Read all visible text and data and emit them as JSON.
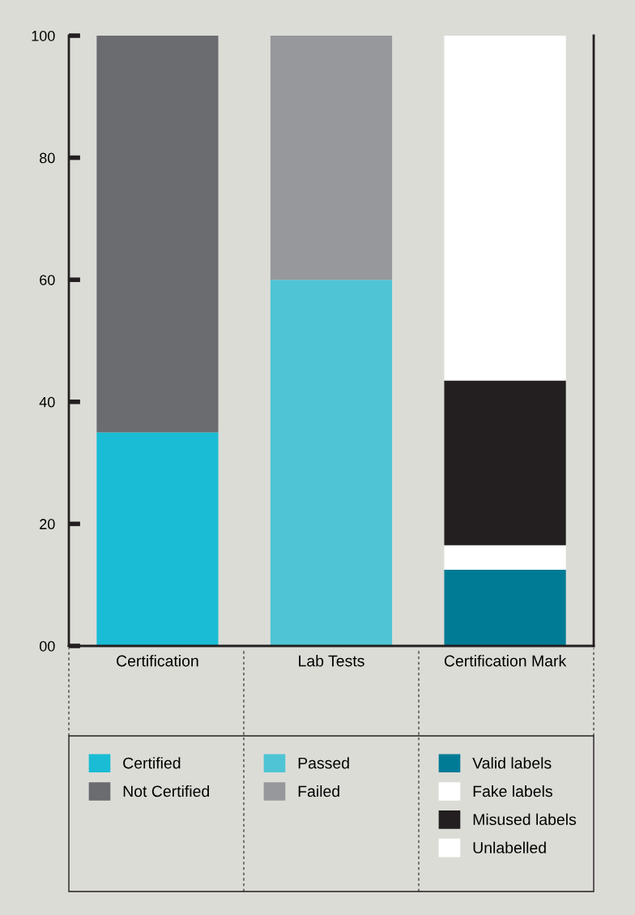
{
  "chart_data": {
    "type": "bar",
    "stacked": true,
    "categories": [
      "Certification",
      "Lab Tests",
      "Certification Mark"
    ],
    "series": [
      {
        "name": "Certified",
        "color": "#19bcd4",
        "values": [
          35,
          null,
          null
        ]
      },
      {
        "name": "Not Certified",
        "color": "#6b6c70",
        "values": [
          65,
          null,
          null
        ]
      },
      {
        "name": "Passed",
        "color": "#4fc4d5",
        "values": [
          null,
          60,
          null
        ]
      },
      {
        "name": "Failed",
        "color": "#97989b",
        "values": [
          null,
          40,
          null
        ]
      },
      {
        "name": "Valid labels",
        "color": "#007b96",
        "values": [
          null,
          null,
          12.5
        ]
      },
      {
        "name": "Fake labels",
        "color": "#ffffff",
        "values": [
          null,
          null,
          4
        ]
      },
      {
        "name": "Misused labels",
        "color": "#231f20",
        "values": [
          null,
          null,
          27
        ]
      },
      {
        "name": "Unlabelled",
        "color": "#ffffff",
        "values": [
          null,
          null,
          56.5
        ]
      }
    ],
    "ylim": [
      0,
      100
    ],
    "yticks": [
      {
        "value": 0,
        "label": "00"
      },
      20,
      40,
      60,
      80,
      100
    ],
    "grid": false,
    "legend": "bottom"
  }
}
